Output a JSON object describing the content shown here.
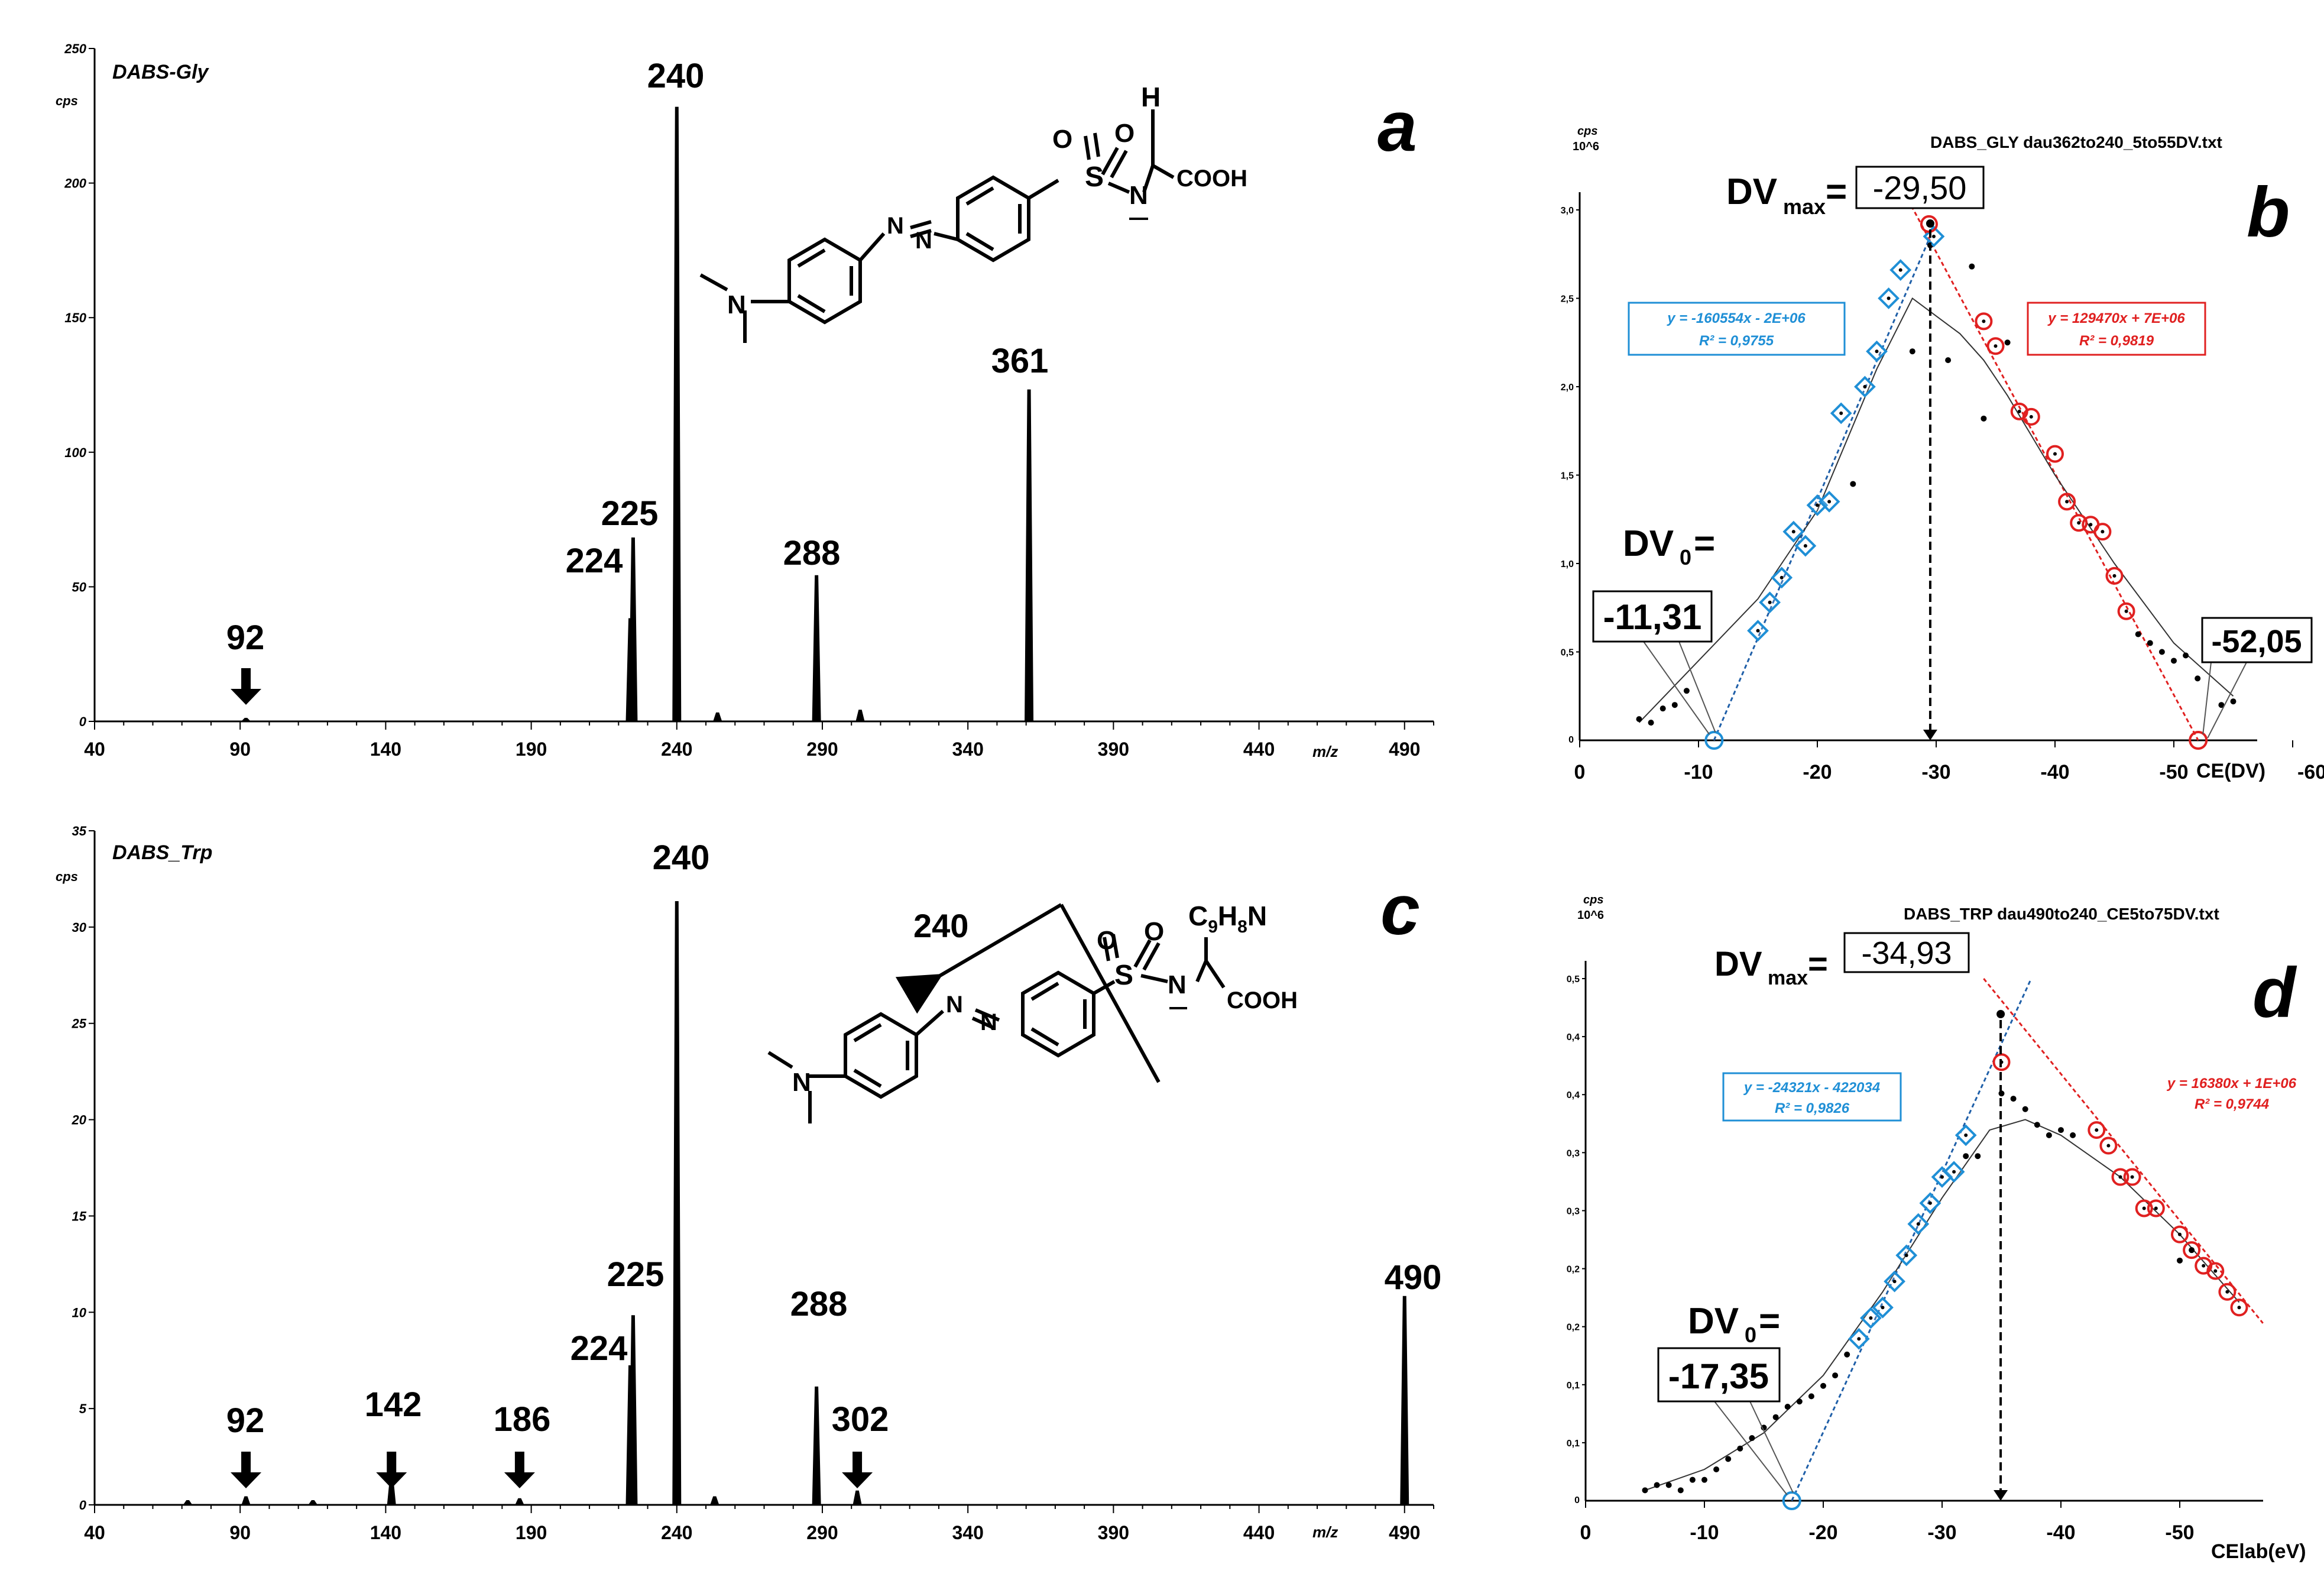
{
  "chart_data": [
    {
      "panel": "a",
      "type": "bar",
      "title": "DABS-Gly",
      "ylabel": "cps",
      "xlabel": "m/z",
      "xlim": [
        40,
        500
      ],
      "ylim": [
        0,
        250
      ],
      "x_ticks": [
        "40",
        "90",
        "140",
        "190",
        "240",
        "290",
        "340",
        "390",
        "440",
        "490"
      ],
      "y_ticks": [
        "0",
        "50",
        "100",
        "150",
        "200",
        "250"
      ],
      "peaks": [
        {
          "mz": 92,
          "intensity": 1,
          "label": "92"
        },
        {
          "mz": 224,
          "intensity": 38,
          "label": "224"
        },
        {
          "mz": 225,
          "intensity": 68,
          "label": "225"
        },
        {
          "mz": 240,
          "intensity": 228,
          "label": "240"
        },
        {
          "mz": 254,
          "intensity": 3,
          "label": ""
        },
        {
          "mz": 288,
          "intensity": 54,
          "label": "288"
        },
        {
          "mz": 303,
          "intensity": 4,
          "label": ""
        },
        {
          "mz": 361,
          "intensity": 123,
          "label": "361"
        }
      ],
      "arrows": [
        "92"
      ]
    },
    {
      "panel": "b",
      "type": "scatter",
      "title": "DABS_GLY dau362to240_5to55DV.txt",
      "ylabel_top": "cps",
      "ylabel_unit": "10^6",
      "xlabel": "CE(DV)",
      "xlim": [
        0,
        -60
      ],
      "ylim": [
        0,
        3.0
      ],
      "x_ticks": [
        "0",
        "-10",
        "-20",
        "-30",
        "-40",
        "-50",
        "-60"
      ],
      "y_ticks": [
        "0,5",
        "1,0",
        "1,5",
        "2,0",
        "2,5",
        "3,0"
      ],
      "blue_fit": {
        "eq": "y = -160554x - 2E+06",
        "r2": "R² = 0,9755",
        "points": [
          [
            -11.3,
            0
          ],
          [
            -29.5,
            2.85
          ]
        ]
      },
      "red_fit": {
        "eq": "y = 129470x + 7E+06",
        "r2": "R² = 0,9819",
        "points": [
          [
            -26.5,
            3.2
          ],
          [
            -52.05,
            0
          ]
        ]
      },
      "blue_markers": [
        [
          -15,
          0.62
        ],
        [
          -16,
          0.78
        ],
        [
          -17,
          0.92
        ],
        [
          -18,
          1.18
        ],
        [
          -19,
          1.1
        ],
        [
          -20,
          1.33
        ],
        [
          -21,
          1.35
        ],
        [
          -22,
          1.85
        ],
        [
          -24,
          2.0
        ],
        [
          -25,
          2.2
        ],
        [
          -26,
          2.5
        ],
        [
          -27,
          2.66
        ],
        [
          -29.8,
          2.85
        ]
      ],
      "red_markers": [
        [
          -29.4,
          2.92
        ],
        [
          -34,
          2.37
        ],
        [
          -35,
          2.23
        ],
        [
          -37,
          1.86
        ],
        [
          -38,
          1.83
        ],
        [
          -40,
          1.62
        ],
        [
          -41,
          1.35
        ],
        [
          -42,
          1.23
        ],
        [
          -43,
          1.22
        ],
        [
          -44,
          1.18
        ],
        [
          -45,
          0.93
        ],
        [
          -46,
          0.73
        ]
      ],
      "black_points": [
        [
          -5,
          0.12
        ],
        [
          -6,
          0.1
        ],
        [
          -7,
          0.18
        ],
        [
          -8,
          0.2
        ],
        [
          -9,
          0.28
        ],
        [
          -23,
          1.45
        ],
        [
          -28,
          2.2
        ],
        [
          -29.5,
          2.8
        ],
        [
          -31,
          2.15
        ],
        [
          -33,
          2.68
        ],
        [
          -34,
          1.82
        ],
        [
          -36,
          2.25
        ],
        [
          -47,
          0.6
        ],
        [
          -48,
          0.55
        ],
        [
          -49,
          0.5
        ],
        [
          -50,
          0.45
        ],
        [
          -51,
          0.48
        ],
        [
          -52,
          0.35
        ],
        [
          -54,
          0.2
        ],
        [
          -55,
          0.22
        ]
      ],
      "trend": [
        [
          -5,
          0.1
        ],
        [
          -10,
          0.45
        ],
        [
          -15,
          0.8
        ],
        [
          -20,
          1.3
        ],
        [
          -25,
          2.1
        ],
        [
          -28,
          2.5
        ],
        [
          -30,
          2.4
        ],
        [
          -32,
          2.3
        ],
        [
          -34,
          2.15
        ],
        [
          -36,
          1.95
        ],
        [
          -40,
          1.5
        ],
        [
          -45,
          1.0
        ],
        [
          -50,
          0.55
        ],
        [
          -55,
          0.25
        ]
      ],
      "dvmax_label": "DV",
      "dvmax_sub": "max",
      "dvmax_eq": "=",
      "dvmax_value": "-29,50",
      "dv0_label": "DV",
      "dv0_sub": "0",
      "dv0_eq": "=",
      "dv0_value": "-11,31",
      "dv_end_value": "-52,05",
      "dv0_x": -11.31,
      "dvmax_x": -29.5,
      "dvend_x": -52.05
    },
    {
      "panel": "c",
      "type": "bar",
      "title": "DABS_Trp",
      "ylabel": "cps",
      "xlabel": "m/z",
      "xlim": [
        40,
        500
      ],
      "ylim": [
        0,
        35
      ],
      "x_ticks": [
        "40",
        "90",
        "140",
        "190",
        "240",
        "290",
        "340",
        "390",
        "440",
        "490"
      ],
      "y_ticks": [
        "0",
        "5",
        "10",
        "15",
        "20",
        "25",
        "30",
        "35"
      ],
      "peaks": [
        {
          "mz": 72,
          "intensity": 0.2,
          "label": ""
        },
        {
          "mz": 92,
          "intensity": 0.4,
          "label": "92"
        },
        {
          "mz": 115,
          "intensity": 0.2,
          "label": ""
        },
        {
          "mz": 142,
          "intensity": 1.4,
          "label": "142"
        },
        {
          "mz": 186,
          "intensity": 0.3,
          "label": "186"
        },
        {
          "mz": 224,
          "intensity": 7.2,
          "label": "224"
        },
        {
          "mz": 225,
          "intensity": 9.8,
          "label": "225"
        },
        {
          "mz": 240,
          "intensity": 31.3,
          "label": "240"
        },
        {
          "mz": 253,
          "intensity": 0.4,
          "label": ""
        },
        {
          "mz": 288,
          "intensity": 6.1,
          "label": "288"
        },
        {
          "mz": 302,
          "intensity": 0.7,
          "label": "302"
        },
        {
          "mz": 490,
          "intensity": 10.8,
          "label": "490"
        }
      ],
      "arrows": [
        "92",
        "142",
        "186",
        "302"
      ]
    },
    {
      "panel": "d",
      "type": "scatter",
      "title": "DABS_TRP dau490to240_CE5to75DV.txt",
      "ylabel_top": "cps",
      "ylabel_unit": "10^6",
      "xlabel": "CElab(eV)",
      "xlim": [
        0,
        -60
      ],
      "ylim": [
        0,
        0.5
      ],
      "x_ticks": [
        "0",
        "-10",
        "-20",
        "-30",
        "-40",
        "-50"
      ],
      "y_ticks": [
        "0,1",
        "0,1",
        "0,2",
        "0,2",
        "0,3",
        "0,3",
        "0,4",
        "0,4",
        "0,5"
      ],
      "blue_fit": {
        "eq": "y = -24321x - 422034",
        "r2": "R² = 0,9826",
        "points": [
          [
            -17.35,
            0
          ],
          [
            -37.5,
            0.5
          ]
        ]
      },
      "red_fit": {
        "eq": "y = 16380x + 1E+06",
        "r2": "R² = 0,9744",
        "points": [
          [
            -33.5,
            0.5
          ],
          [
            -57,
            0.17
          ]
        ]
      },
      "blue_markers": [
        [
          -23,
          0.155
        ],
        [
          -24,
          0.175
        ],
        [
          -25,
          0.185
        ],
        [
          -26,
          0.21
        ],
        [
          -27,
          0.235
        ],
        [
          -28,
          0.265
        ],
        [
          -29,
          0.285
        ],
        [
          -30,
          0.31
        ],
        [
          -31,
          0.315
        ],
        [
          -32,
          0.35
        ]
      ],
      "red_markers": [
        [
          -35,
          0.42
        ],
        [
          -43,
          0.355
        ],
        [
          -44,
          0.34
        ],
        [
          -45,
          0.31
        ],
        [
          -46,
          0.31
        ],
        [
          -47,
          0.28
        ],
        [
          -48,
          0.28
        ],
        [
          -50,
          0.255
        ],
        [
          -51,
          0.24
        ],
        [
          -52,
          0.225
        ],
        [
          -53,
          0.22
        ],
        [
          -54,
          0.2
        ],
        [
          -55,
          0.185
        ]
      ],
      "black_points": [
        [
          -5,
          0.01
        ],
        [
          -6,
          0.015
        ],
        [
          -7,
          0.015
        ],
        [
          -8,
          0.01
        ],
        [
          -9,
          0.02
        ],
        [
          -10,
          0.02
        ],
        [
          -11,
          0.03
        ],
        [
          -12,
          0.04
        ],
        [
          -13,
          0.05
        ],
        [
          -14,
          0.06
        ],
        [
          -15,
          0.07
        ],
        [
          -16,
          0.08
        ],
        [
          -17,
          0.09
        ],
        [
          -18,
          0.095
        ],
        [
          -19,
          0.1
        ],
        [
          -20,
          0.11
        ],
        [
          -21,
          0.12
        ],
        [
          -22,
          0.14
        ],
        [
          -32,
          0.33
        ],
        [
          -33,
          0.33
        ],
        [
          -35,
          0.39
        ],
        [
          -36,
          0.385
        ],
        [
          -37,
          0.375
        ],
        [
          -38,
          0.36
        ],
        [
          -39,
          0.35
        ],
        [
          -40,
          0.355
        ],
        [
          -41,
          0.35
        ],
        [
          -50,
          0.23
        ],
        [
          -51,
          0.24
        ]
      ],
      "trend": [
        [
          -5,
          0.01
        ],
        [
          -10,
          0.03
        ],
        [
          -15,
          0.065
        ],
        [
          -20,
          0.12
        ],
        [
          -25,
          0.2
        ],
        [
          -30,
          0.29
        ],
        [
          -34,
          0.355
        ],
        [
          -37,
          0.365
        ],
        [
          -40,
          0.35
        ],
        [
          -45,
          0.31
        ],
        [
          -50,
          0.255
        ],
        [
          -55,
          0.19
        ]
      ],
      "dvmax_label": "DV",
      "dvmax_sub": "max",
      "dvmax_eq": "=",
      "dvmax_value": "-34,93",
      "dv0_label": "DV",
      "dv0_sub": "0",
      "dv0_eq": "=",
      "dv0_value": "-17,35",
      "dv0_x": -17.35,
      "dvmax_x": -34.93
    }
  ],
  "panel_letters": {
    "a": "a",
    "b": "b",
    "c": "c",
    "d": "d"
  },
  "structure_a": {
    "H": "H",
    "S": "S",
    "O1": "O",
    "O2": "O",
    "N": "N",
    "COOH": "COOH",
    "N_amine": "N"
  },
  "structure_c": {
    "R": "C9H8N",
    "R_main": "C",
    "R_sub1": "9",
    "R_mid": "H",
    "R_sub2": "8",
    "R_end": "N",
    "frag": "240",
    "S": "S",
    "O1": "O",
    "O2": "O",
    "N": "N",
    "COOH": "COOH",
    "N_amine": "N"
  }
}
